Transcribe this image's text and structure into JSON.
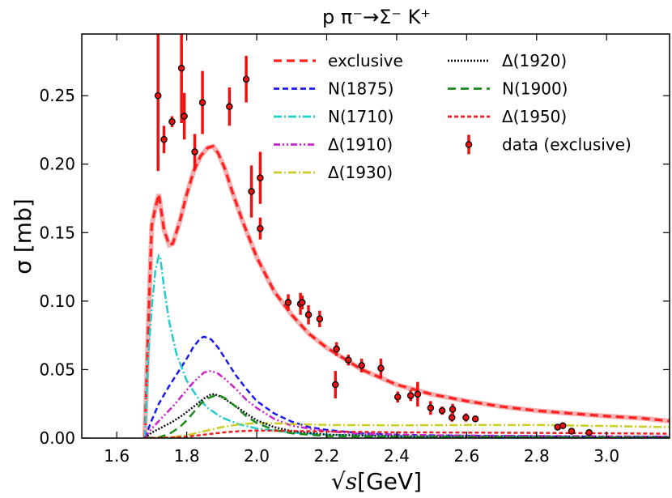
{
  "chart_data": {
    "type": "line",
    "title": "p π⁻→Σ⁻ K⁺",
    "xlabel": "√s [GeV]",
    "xlabel_parts": {
      "sqrt": "√",
      "s": "s",
      "unit": "[GeV]"
    },
    "ylabel": "σ [mb]",
    "xlim": [
      1.5,
      3.18
    ],
    "ylim": [
      0.0,
      0.295
    ],
    "xticks": [
      1.6,
      1.8,
      2.0,
      2.2,
      2.4,
      2.6,
      2.8,
      3.0
    ],
    "xtick_labels": [
      "1.6",
      "1.8",
      "2.0",
      "2.2",
      "2.4",
      "2.6",
      "2.8",
      "3.0"
    ],
    "yticks": [
      0.0,
      0.05,
      0.1,
      0.15,
      0.2,
      0.25
    ],
    "ytick_labels": [
      "0.00",
      "0.05",
      "0.10",
      "0.15",
      "0.20",
      "0.25"
    ],
    "legend_position": "top-right",
    "series": [
      {
        "name": "exclusive",
        "color": "#ff2020",
        "dash": "10,6",
        "width": 3.2,
        "x": [
          1.68,
          1.69,
          1.7,
          1.71,
          1.72,
          1.735,
          1.75,
          1.76,
          1.78,
          1.8,
          1.82,
          1.84,
          1.86,
          1.875,
          1.89,
          1.91,
          1.93,
          1.96,
          2.0,
          2.05,
          2.1,
          2.15,
          2.2,
          2.3,
          2.4,
          2.5,
          2.6,
          2.7,
          2.8,
          2.9,
          3.0,
          3.1,
          3.18
        ],
        "y": [
          0.0,
          0.08,
          0.155,
          0.168,
          0.178,
          0.152,
          0.141,
          0.142,
          0.158,
          0.178,
          0.195,
          0.206,
          0.212,
          0.213,
          0.208,
          0.196,
          0.18,
          0.158,
          0.132,
          0.107,
          0.09,
          0.076,
          0.066,
          0.05,
          0.039,
          0.032,
          0.027,
          0.023,
          0.02,
          0.018,
          0.016,
          0.0145,
          0.0125
        ]
      },
      {
        "name": "N(1875)",
        "color": "#1a1aee",
        "dash": "7,4",
        "width": 2.5,
        "x": [
          1.68,
          1.7,
          1.72,
          1.75,
          1.78,
          1.8,
          1.82,
          1.84,
          1.85,
          1.87,
          1.89,
          1.91,
          1.94,
          1.97,
          2.0,
          2.05,
          2.1,
          2.15,
          2.2,
          2.3,
          2.4,
          2.5,
          2.7,
          3.0,
          3.18
        ],
        "y": [
          0.0,
          0.013,
          0.025,
          0.038,
          0.05,
          0.058,
          0.067,
          0.073,
          0.074,
          0.072,
          0.066,
          0.058,
          0.046,
          0.036,
          0.027,
          0.018,
          0.012,
          0.008,
          0.006,
          0.0035,
          0.0025,
          0.002,
          0.0015,
          0.001,
          0.001
        ]
      },
      {
        "name": "N(1710)",
        "color": "#22cccc",
        "dash": "10,3,2,3",
        "width": 2.5,
        "x": [
          1.68,
          1.69,
          1.7,
          1.71,
          1.72,
          1.725,
          1.735,
          1.75,
          1.77,
          1.8,
          1.83,
          1.86,
          1.9,
          1.95,
          2.0,
          2.1,
          2.2,
          2.4,
          3.18
        ],
        "y": [
          0.0,
          0.06,
          0.095,
          0.122,
          0.133,
          0.131,
          0.11,
          0.085,
          0.062,
          0.042,
          0.03,
          0.022,
          0.015,
          0.01,
          0.007,
          0.004,
          0.0025,
          0.0015,
          0.0005
        ]
      },
      {
        "name": "Δ(1910)",
        "color": "#cc22cc",
        "dash": "8,3,2,3,2,3",
        "width": 2.5,
        "x": [
          1.68,
          1.7,
          1.73,
          1.76,
          1.79,
          1.82,
          1.85,
          1.87,
          1.89,
          1.91,
          1.94,
          1.97,
          2.0,
          2.05,
          2.1,
          2.2,
          2.3,
          2.5,
          3.18
        ],
        "y": [
          0.0,
          0.007,
          0.015,
          0.023,
          0.032,
          0.041,
          0.048,
          0.049,
          0.047,
          0.043,
          0.036,
          0.028,
          0.022,
          0.014,
          0.009,
          0.005,
          0.003,
          0.002,
          0.001
        ]
      },
      {
        "name": "Δ(1930)",
        "color": "#cccc22",
        "dash": "10,3,2,3",
        "width": 2.5,
        "x": [
          1.68,
          1.75,
          1.8,
          1.85,
          1.9,
          1.95,
          2.0,
          2.05,
          2.1,
          2.2,
          2.4,
          2.6,
          2.8,
          3.0,
          3.18
        ],
        "y": [
          0.0,
          0.0005,
          0.002,
          0.005,
          0.008,
          0.01,
          0.011,
          0.0108,
          0.0102,
          0.0096,
          0.0093,
          0.0095,
          0.0096,
          0.0088,
          0.008
        ]
      },
      {
        "name": "Δ(1920)",
        "color": "#111111",
        "dash": "2,2",
        "width": 2.5,
        "x": [
          1.68,
          1.7,
          1.73,
          1.76,
          1.79,
          1.82,
          1.85,
          1.87,
          1.88,
          1.9,
          1.93,
          1.97,
          2.0,
          2.05,
          2.1,
          2.2,
          2.4,
          3.18
        ],
        "y": [
          0.0,
          0.004,
          0.008,
          0.012,
          0.017,
          0.023,
          0.029,
          0.032,
          0.032,
          0.03,
          0.025,
          0.018,
          0.013,
          0.008,
          0.005,
          0.0025,
          0.0012,
          0.0005
        ]
      },
      {
        "name": "N(1900)",
        "color": "#1a8a1a",
        "dash": "10,6",
        "width": 2.5,
        "x": [
          1.68,
          1.72,
          1.75,
          1.78,
          1.8,
          1.82,
          1.84,
          1.86,
          1.88,
          1.89,
          1.91,
          1.94,
          1.97,
          2.0,
          2.05,
          2.1,
          2.2,
          2.4,
          3.18
        ],
        "y": [
          0.0,
          0.0005,
          0.003,
          0.008,
          0.013,
          0.019,
          0.025,
          0.029,
          0.031,
          0.0315,
          0.029,
          0.023,
          0.016,
          0.011,
          0.006,
          0.0035,
          0.0015,
          0.0008,
          0.0003
        ]
      },
      {
        "name": "Δ(1950)",
        "color": "#ee2020",
        "dash": "5,3",
        "width": 2.5,
        "x": [
          1.68,
          1.75,
          1.8,
          1.85,
          1.9,
          1.95,
          2.0,
          2.1,
          2.2,
          2.4,
          2.6,
          2.8,
          3.0,
          3.18
        ],
        "y": [
          0.0,
          0.0003,
          0.001,
          0.0025,
          0.004,
          0.005,
          0.0055,
          0.0052,
          0.0048,
          0.0042,
          0.004,
          0.0038,
          0.0035,
          0.0032
        ]
      }
    ],
    "data": {
      "name": "data (exclusive)",
      "color": "#ee1111",
      "points": [
        {
          "x": 1.718,
          "y": 0.25,
          "err": 0.055
        },
        {
          "x": 1.735,
          "y": 0.218,
          "err": 0.01
        },
        {
          "x": 1.758,
          "y": 0.231,
          "err": 0.004
        },
        {
          "x": 1.785,
          "y": 0.27,
          "err": 0.04
        },
        {
          "x": 1.793,
          "y": 0.235,
          "err": 0.017
        },
        {
          "x": 1.823,
          "y": 0.209,
          "err": 0.013
        },
        {
          "x": 1.845,
          "y": 0.245,
          "err": 0.023
        },
        {
          "x": 1.922,
          "y": 0.242,
          "err": 0.014
        },
        {
          "x": 1.97,
          "y": 0.262,
          "err": 0.017
        },
        {
          "x": 1.985,
          "y": 0.18,
          "err": 0.019
        },
        {
          "x": 2.01,
          "y": 0.19,
          "err": 0.019
        },
        {
          "x": 2.01,
          "y": 0.153,
          "err": 0.008
        },
        {
          "x": 2.09,
          "y": 0.099,
          "err": 0.006
        },
        {
          "x": 2.125,
          "y": 0.098,
          "err": 0.008
        },
        {
          "x": 2.13,
          "y": 0.099,
          "err": 0.005
        },
        {
          "x": 2.148,
          "y": 0.09,
          "err": 0.007
        },
        {
          "x": 2.18,
          "y": 0.087,
          "err": 0.006
        },
        {
          "x": 2.225,
          "y": 0.039,
          "err": 0.01
        },
        {
          "x": 2.228,
          "y": 0.065,
          "err": 0.005
        },
        {
          "x": 2.262,
          "y": 0.057,
          "err": 0.004
        },
        {
          "x": 2.3,
          "y": 0.053,
          "err": 0.005
        },
        {
          "x": 2.355,
          "y": 0.051,
          "err": 0.007
        },
        {
          "x": 2.403,
          "y": 0.03,
          "err": 0.004
        },
        {
          "x": 2.44,
          "y": 0.031,
          "err": 0.004
        },
        {
          "x": 2.46,
          "y": 0.032,
          "err": 0.009
        },
        {
          "x": 2.497,
          "y": 0.022,
          "err": 0.005
        },
        {
          "x": 2.53,
          "y": 0.02,
          "err": 0.003
        },
        {
          "x": 2.558,
          "y": 0.015,
          "err": 0.003
        },
        {
          "x": 2.56,
          "y": 0.021,
          "err": 0.004
        },
        {
          "x": 2.598,
          "y": 0.015,
          "err": 0.003
        },
        {
          "x": 2.625,
          "y": 0.014,
          "err": 0.002
        },
        {
          "x": 2.86,
          "y": 0.008,
          "err": 0.002
        },
        {
          "x": 2.875,
          "y": 0.009,
          "err": 0.002
        },
        {
          "x": 2.9,
          "y": 0.005,
          "err": 0.002
        },
        {
          "x": 2.95,
          "y": 0.004,
          "err": 0.001
        }
      ]
    }
  }
}
